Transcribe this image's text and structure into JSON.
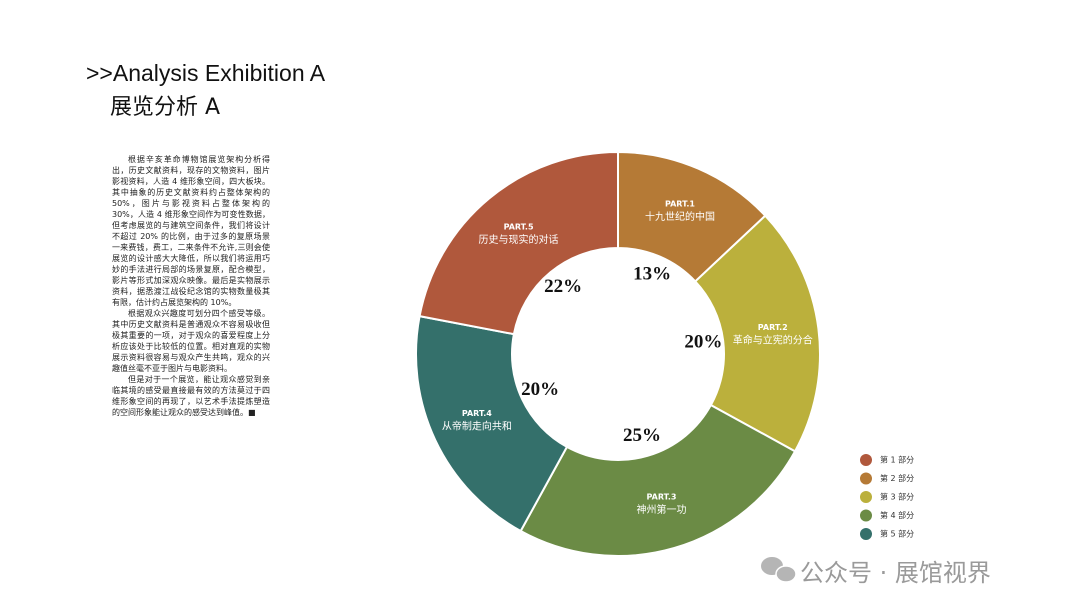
{
  "header": {
    "title": ">>Analysis Exhibition A",
    "subtitle": "展览分析 A"
  },
  "body": [
    "根据辛亥革命博物馆展览架构分析得出，历史文献资料，现存的文物资料，图片影视资料，人造 4 维形象空间，四大板块。其中抽象的历史文献资料约占整体架构的 50%，图片与影视资料占整体架构的 30%，人造 4 维形象空间作为可变性数据，但考虑展览的与建筑空间条件，我们将设计不超过 20% 的比例，由于过多的复原场景一来费钱，费工，二来条件不允许,三则会使展览的设计感大大降低，所以我们将运用巧妙的手法进行局部的场景复原，配合模型，影片等形式加深观众映像。最后是实物展示资料，据悉渡江战役纪念馆的实物数量极其有限，估计约占展览架构的 10%。",
    "根据观众兴趣度可划分四个感受等级。其中历史文献资料是普通观众不容易吸收但极其重要的一项，对于观众的喜爱程度上分析应该处于比较低的位置。相对直观的实物展示资料很容易与观众产生共鸣，观众的兴趣值丝毫不亚于图片与电影资料。",
    "但是对于一个展览，能让观众感觉到亲临其境的感受最直接最有效的方法莫过于四维形象空间的再现了，以艺术手法提炼塑造的空间形象能让观众的感受达到峰值。■"
  ],
  "chart_data": {
    "type": "pie",
    "categories": [
      "PART.1",
      "PART.2",
      "PART.3",
      "PART.4",
      "PART.5"
    ],
    "segment_labels": [
      "十九世纪的中国",
      "革命与立宪的分合",
      "神州第一功",
      "从帝制走向共和",
      "历史与现实的对话"
    ],
    "values": [
      13,
      20,
      25,
      20,
      22
    ],
    "value_labels": [
      "13%",
      "20%",
      "25%",
      "20%",
      "22%"
    ],
    "colors": [
      "#b57a36",
      "#bbb03c",
      "#6b8b45",
      "#34706b",
      "#b0583c"
    ],
    "legend": [
      {
        "name": "第 1 部分",
        "color": "#b0583c"
      },
      {
        "name": "第 2 部分",
        "color": "#b57a36"
      },
      {
        "name": "第 3 部分",
        "color": "#bbb03c"
      },
      {
        "name": "第 4 部分",
        "color": "#6b8b45"
      },
      {
        "name": "第 5 部分",
        "color": "#34706b"
      }
    ]
  },
  "watermark": "公众号 · 展馆视界"
}
